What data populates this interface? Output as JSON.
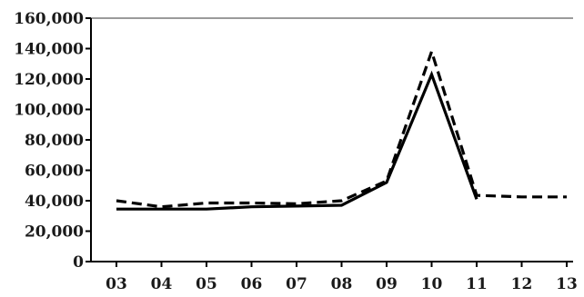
{
  "chart_data": {
    "type": "line",
    "title": "",
    "xlabel": "",
    "ylabel": "",
    "categories": [
      "03",
      "04",
      "05",
      "06",
      "07",
      "08",
      "09",
      "10",
      "11",
      "12",
      "13"
    ],
    "ylim": [
      0,
      160000
    ],
    "yticks": [
      0,
      20000,
      40000,
      60000,
      80000,
      100000,
      120000,
      140000,
      160000
    ],
    "ytick_labels": [
      "0",
      "20,000",
      "40,000",
      "60,000",
      "80,000",
      "100,000",
      "120,000",
      "140,000",
      "160,000"
    ],
    "grid": false,
    "legend": "none",
    "series": [
      {
        "style": "dashed",
        "color": "#000000",
        "values": [
          40000,
          36000,
          38500,
          38500,
          38000,
          40000,
          53000,
          138000,
          43500,
          42500,
          42500
        ]
      },
      {
        "style": "solid",
        "color": "#000000",
        "values": [
          34500,
          34500,
          34500,
          36000,
          36500,
          37000,
          52000,
          123000,
          41000,
          null,
          null
        ]
      }
    ]
  }
}
